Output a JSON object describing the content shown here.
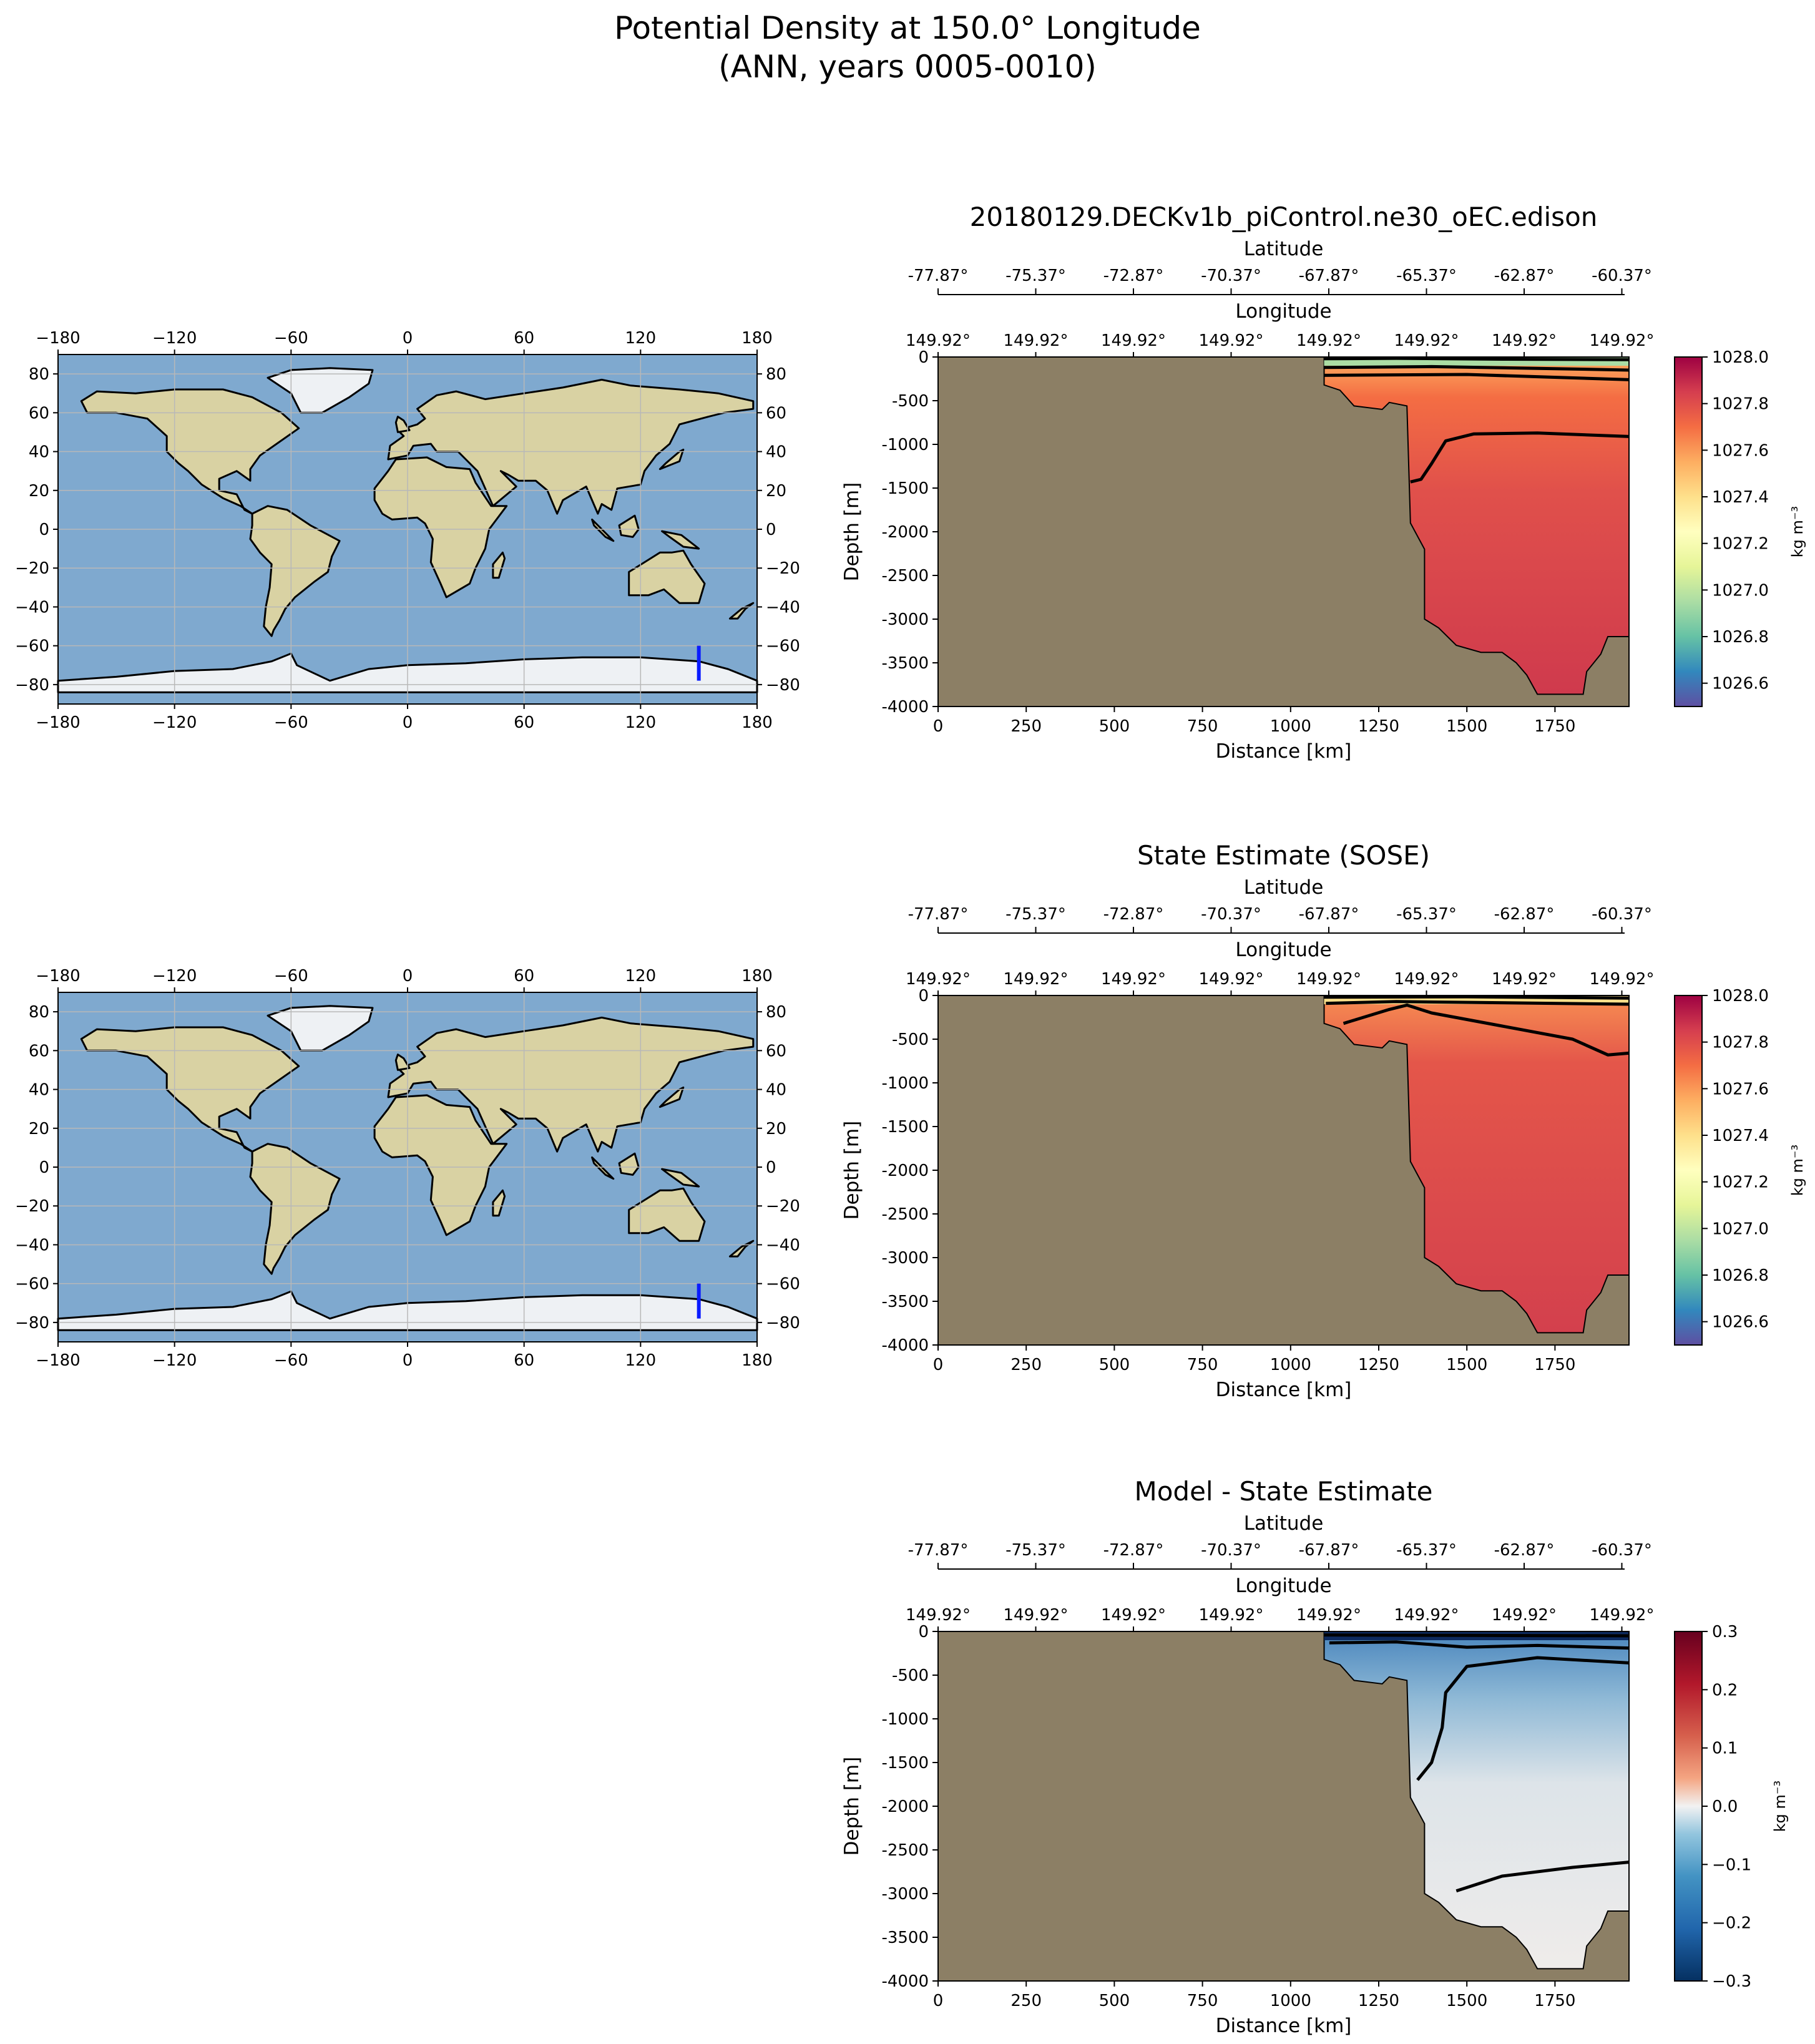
{
  "figure": {
    "title_line1": "Potential Density at 150.0° Longitude",
    "title_line2": "(ANN, years 0005-0010)"
  },
  "maps": {
    "lon_ticks": [
      "−180",
      "−120",
      "−60",
      "0",
      "60",
      "120",
      "180"
    ],
    "lat_ticks": [
      "−80",
      "−60",
      "−40",
      "−20",
      "0",
      "20",
      "40",
      "60",
      "80"
    ],
    "transect_color": "#0a1cff",
    "transect": {
      "lon": 150,
      "lat_start": -78,
      "lat_end": -60
    },
    "ocean_color": "#7fa9cf",
    "land_color": "#d9d2a3"
  },
  "sections": {
    "lat_axis_label": "Latitude",
    "lon_axis_label": "Longitude",
    "lat_ticks": [
      "-77.87°",
      "-75.37°",
      "-72.87°",
      "-70.37°",
      "-67.87°",
      "-65.37°",
      "-62.87°",
      "-60.37°"
    ],
    "lon_ticks": [
      "149.92°",
      "149.92°",
      "149.92°",
      "149.92°",
      "149.92°",
      "149.92°",
      "149.92°",
      "149.92°"
    ],
    "ylabel": "Depth [m]",
    "xlabel": "Distance [km]",
    "xticks": [
      "0",
      "250",
      "500",
      "750",
      "1000",
      "1250",
      "1500",
      "1750"
    ],
    "yticks": [
      "0",
      "-500",
      "-1000",
      "-1500",
      "-2000",
      "-2500",
      "-3000",
      "-3500",
      "-4000"
    ],
    "cbar_unit": "kg m⁻³",
    "land_color": "#8c7f65"
  },
  "chart_data": [
    {
      "type": "heatmap",
      "title": "20180129.DECKv1b_piControl.ne30_oEC.edison",
      "x": [
        0,
        250,
        500,
        750,
        1000,
        1250,
        1500,
        1750
      ],
      "xlim": [
        0,
        1960
      ],
      "ylim": [
        -4000,
        0
      ],
      "cbar_ticks": [
        "1028.0",
        "1027.8",
        "1027.6",
        "1027.4",
        "1027.2",
        "1027.0",
        "1026.8",
        "1026.6"
      ],
      "cbar_range": [
        1026.5,
        1028.0
      ],
      "colormap": "Spectral_r"
    },
    {
      "type": "heatmap",
      "title": "State Estimate (SOSE)",
      "x": [
        0,
        250,
        500,
        750,
        1000,
        1250,
        1500,
        1750
      ],
      "xlim": [
        0,
        1960
      ],
      "ylim": [
        -4000,
        0
      ],
      "cbar_ticks": [
        "1028.0",
        "1027.8",
        "1027.6",
        "1027.4",
        "1027.2",
        "1027.0",
        "1026.8",
        "1026.6"
      ],
      "cbar_range": [
        1026.5,
        1028.0
      ],
      "colormap": "Spectral_r"
    },
    {
      "type": "heatmap",
      "title": "Model - State Estimate",
      "x": [
        0,
        250,
        500,
        750,
        1000,
        1250,
        1500,
        1750
      ],
      "xlim": [
        0,
        1960
      ],
      "ylim": [
        -4000,
        0
      ],
      "cbar_ticks": [
        "0.3",
        "0.2",
        "0.1",
        "0.0",
        "−0.1",
        "−0.2",
        "−0.3"
      ],
      "cbar_range": [
        -0.3,
        0.3
      ],
      "colormap": "RdBu_r"
    }
  ]
}
